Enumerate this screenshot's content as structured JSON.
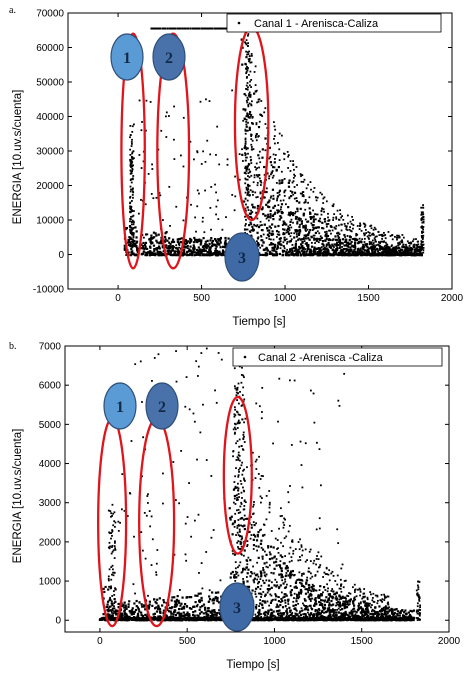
{
  "panels": [
    {
      "letter": "a.",
      "legend": "Canal 1 - Arenisca-Caliza",
      "markers": [
        "1",
        "2",
        "3"
      ]
    },
    {
      "letter": "b.",
      "legend": "Canal 2 -Arenisca -Caliza",
      "markers": [
        "1",
        "2",
        "3"
      ]
    }
  ],
  "colors": {
    "points": "#000000",
    "ellipse": "#e0151b",
    "bubble_light": "#5b9bd5",
    "bubble_dark": "#4a72aa",
    "bubble_mid": "#3f6aa6"
  },
  "chart_data": [
    {
      "type": "scatter",
      "title": "",
      "xlabel": "Tiempo [s]",
      "ylabel": "ENERGIA [10.uv.s/cuenta]",
      "xlim": [
        -300,
        2000
      ],
      "ylim": [
        -10000,
        70000
      ],
      "xticks": [
        0,
        500,
        1000,
        1500,
        2000
      ],
      "yticks": [
        -10000,
        0,
        10000,
        20000,
        30000,
        40000,
        50000,
        60000,
        70000
      ],
      "series": [
        {
          "name": "Canal 1 - Arenisca-Caliza",
          "description_points": [
            [
              80,
              35000
            ],
            [
              85,
              28000
            ],
            [
              90,
              22000
            ],
            [
              100,
              46000
            ],
            [
              300,
              47000
            ],
            [
              310,
              43000
            ],
            [
              320,
              30000
            ],
            [
              420,
              33000
            ],
            [
              750,
              65500
            ],
            [
              800,
              64000
            ],
            [
              850,
              52000
            ],
            [
              900,
              40000
            ],
            [
              1000,
              30000
            ],
            [
              1100,
              25000
            ],
            [
              1200,
              20000
            ],
            [
              1300,
              15000
            ],
            [
              1400,
              12000
            ],
            [
              1500,
              10000
            ],
            [
              1600,
              8000
            ],
            [
              1800,
              3000
            ],
            [
              1820,
              15000
            ],
            [
              1830,
              6000
            ]
          ],
          "saturated_line": [
            0,
            1000,
            65500
          ]
        }
      ],
      "annotations": [
        "1",
        "2",
        "3"
      ]
    },
    {
      "type": "scatter",
      "title": "",
      "xlabel": "Tiempo [s]",
      "ylabel": "ENERGIA [10.uv.s/cuenta]",
      "xlim": [
        -200,
        2000
      ],
      "ylim": [
        -300,
        7000
      ],
      "xticks": [
        0,
        500,
        1000,
        1500,
        2000
      ],
      "yticks": [
        0,
        1000,
        2000,
        3000,
        4000,
        5000,
        6000,
        7000
      ],
      "series": [
        {
          "name": "Canal 2 -Arenisca -Caliza",
          "description_points": [
            [
              60,
              1000
            ],
            [
              80,
              500
            ],
            [
              350,
              6800
            ],
            [
              560,
              6950
            ],
            [
              800,
              6600
            ],
            [
              820,
              5500
            ],
            [
              850,
              4000
            ],
            [
              900,
              3000
            ],
            [
              1000,
              2500
            ],
            [
              1100,
              2200
            ],
            [
              1200,
              1800
            ],
            [
              1300,
              1400
            ],
            [
              1400,
              900
            ],
            [
              1500,
              700
            ],
            [
              1600,
              400
            ],
            [
              1820,
              900
            ],
            [
              1850,
              600
            ]
          ]
        }
      ],
      "annotations": [
        "1",
        "2",
        "3"
      ]
    }
  ]
}
